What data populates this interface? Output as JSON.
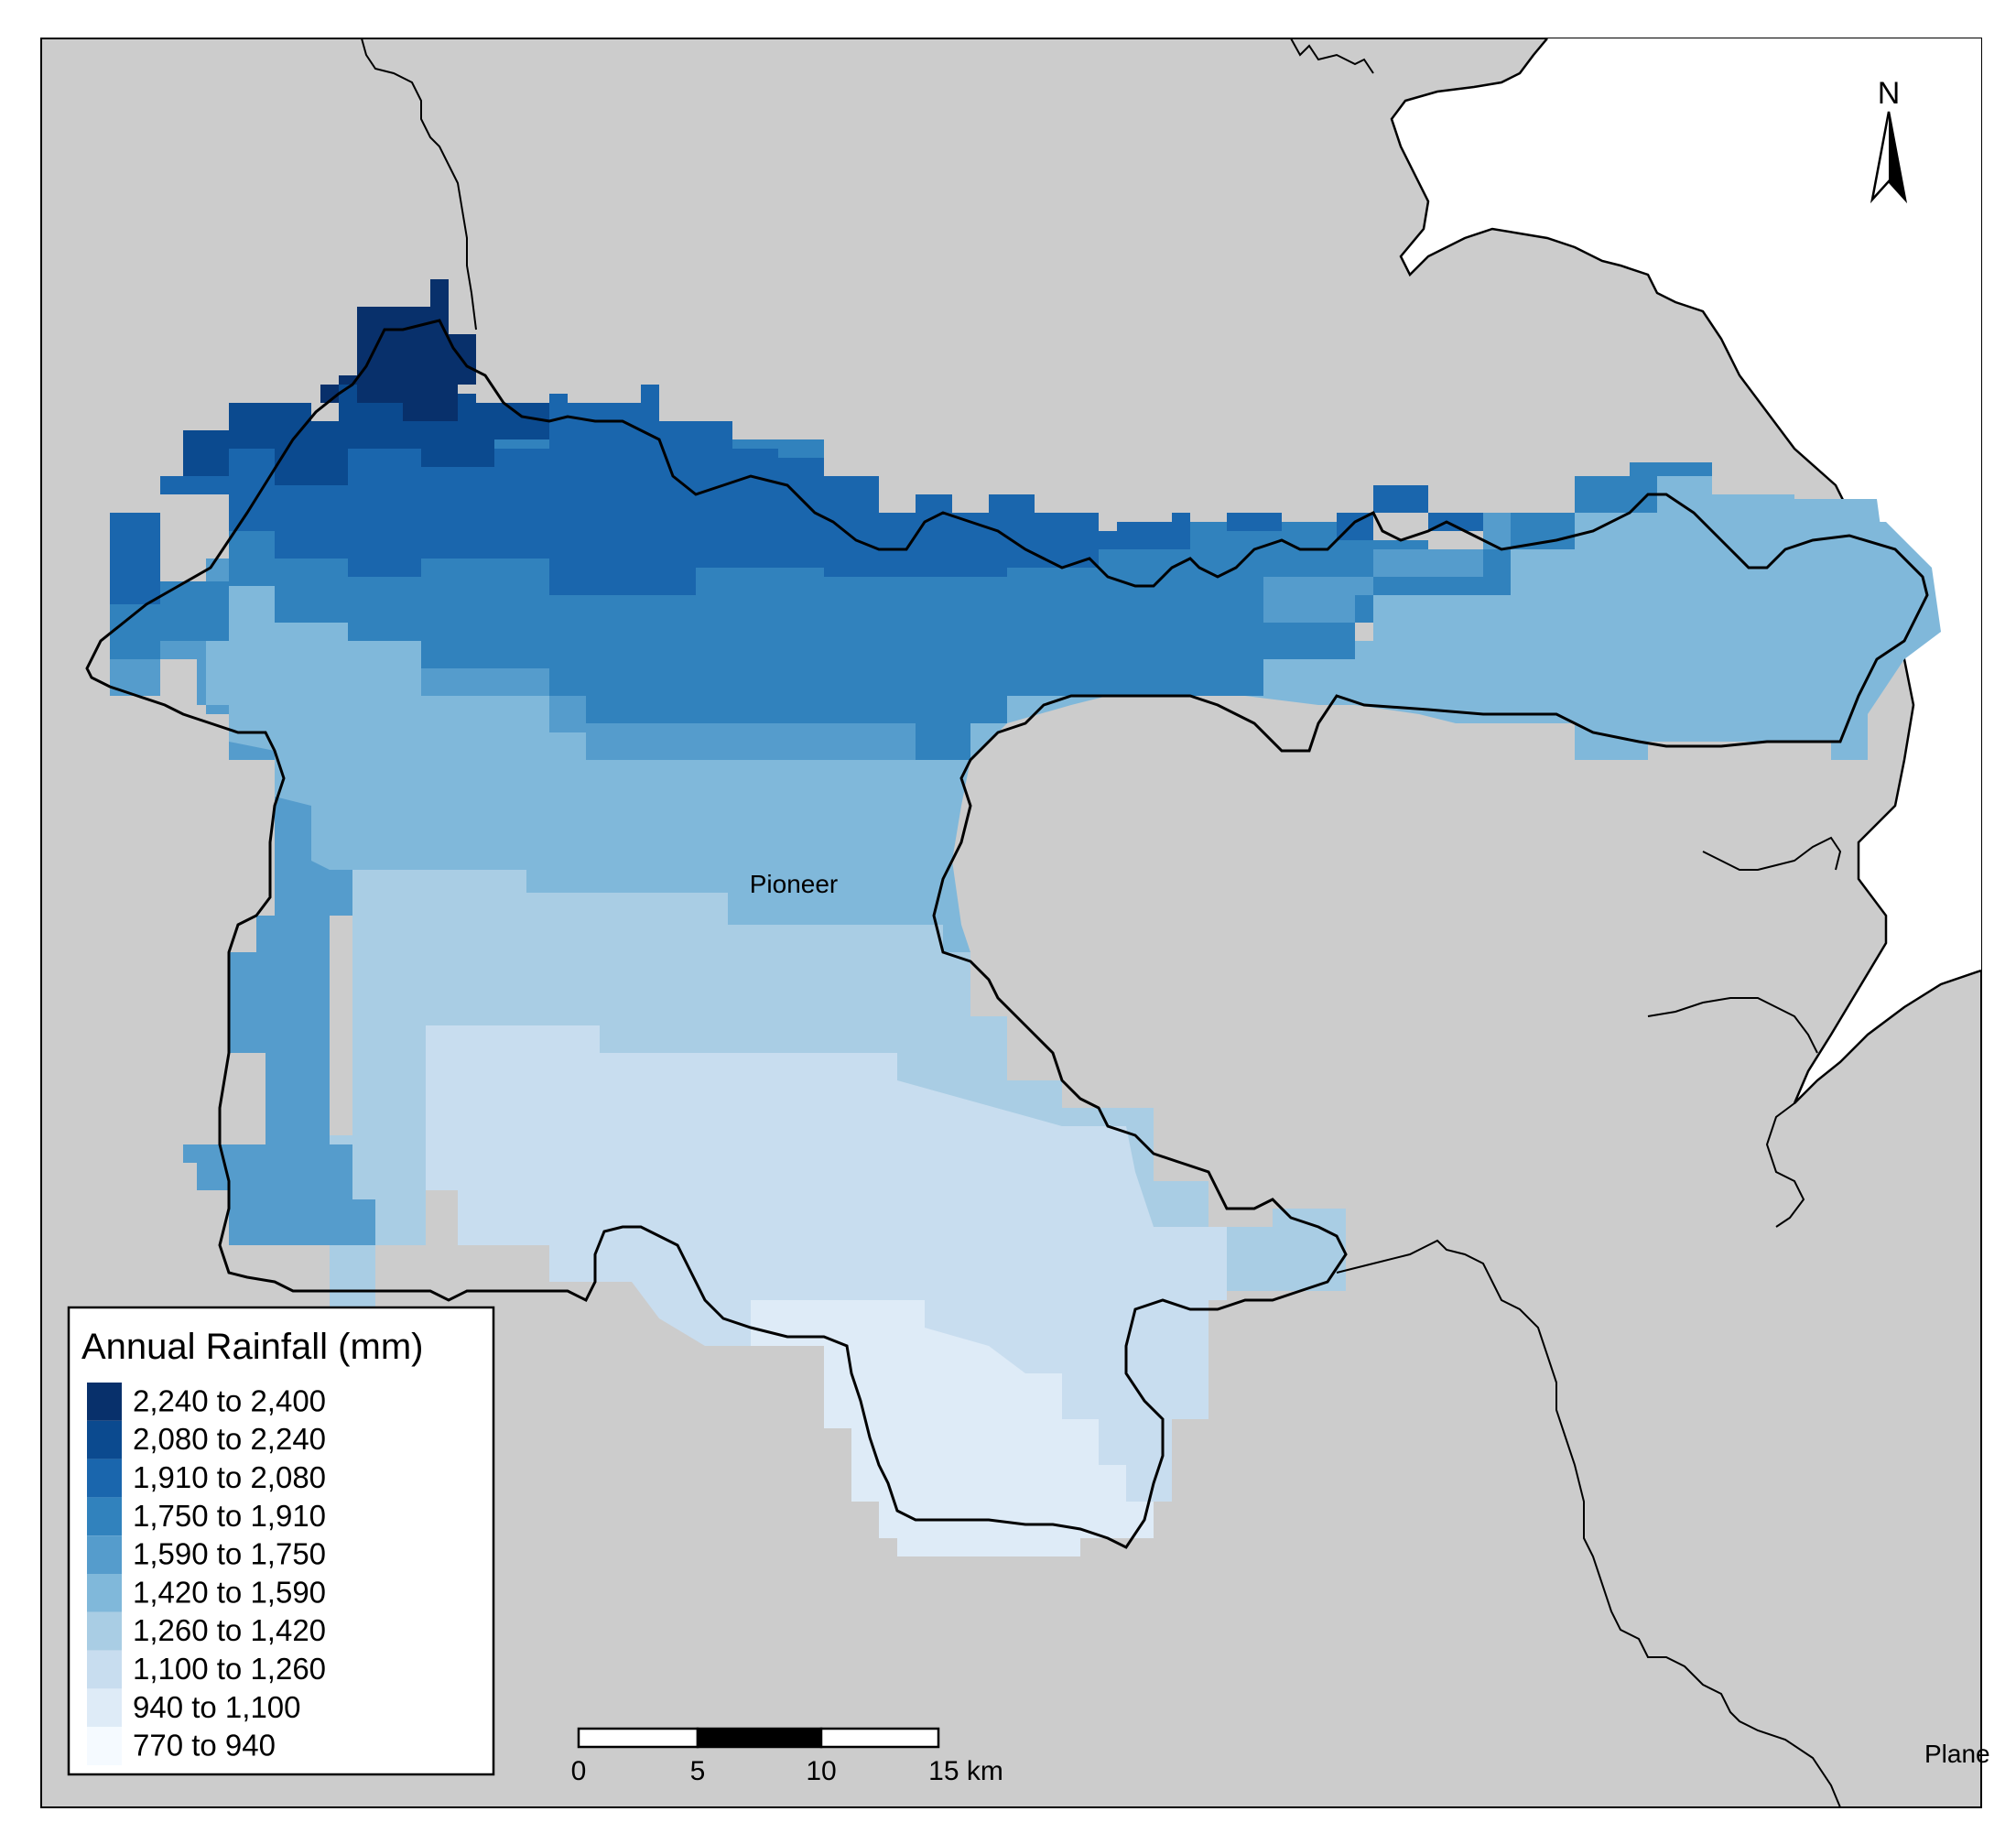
{
  "map": {
    "place_labels": {
      "pioneer": "Pioneer",
      "plane": "Plane"
    },
    "north_arrow_label": "N",
    "background_color": "#cccccc",
    "sea_color": "#ffffff",
    "boundary_color": "#000000"
  },
  "legend": {
    "title": "Annual Rainfall (mm)",
    "classes": [
      {
        "label": "2,240 to 2,400",
        "color": "#08306b"
      },
      {
        "label": "2,080 to 2,240",
        "color": "#0b4a8f"
      },
      {
        "label": "1,910 to 2,080",
        "color": "#1a66ad"
      },
      {
        "label": "1,750 to 1,910",
        "color": "#3182bd"
      },
      {
        "label": "1,590 to 1,750",
        "color": "#559ccc"
      },
      {
        "label": "1,420 to 1,590",
        "color": "#80b8da"
      },
      {
        "label": "1,260 to 1,420",
        "color": "#a9cde4"
      },
      {
        "label": "1,100 to 1,260",
        "color": "#c8ddef"
      },
      {
        "label": "940 to 1,100",
        "color": "#deebf7"
      },
      {
        "label": "770 to 940",
        "color": "#f5faff"
      }
    ]
  },
  "scale_bar": {
    "ticks": [
      "0",
      "5",
      "10",
      "15 km"
    ]
  }
}
